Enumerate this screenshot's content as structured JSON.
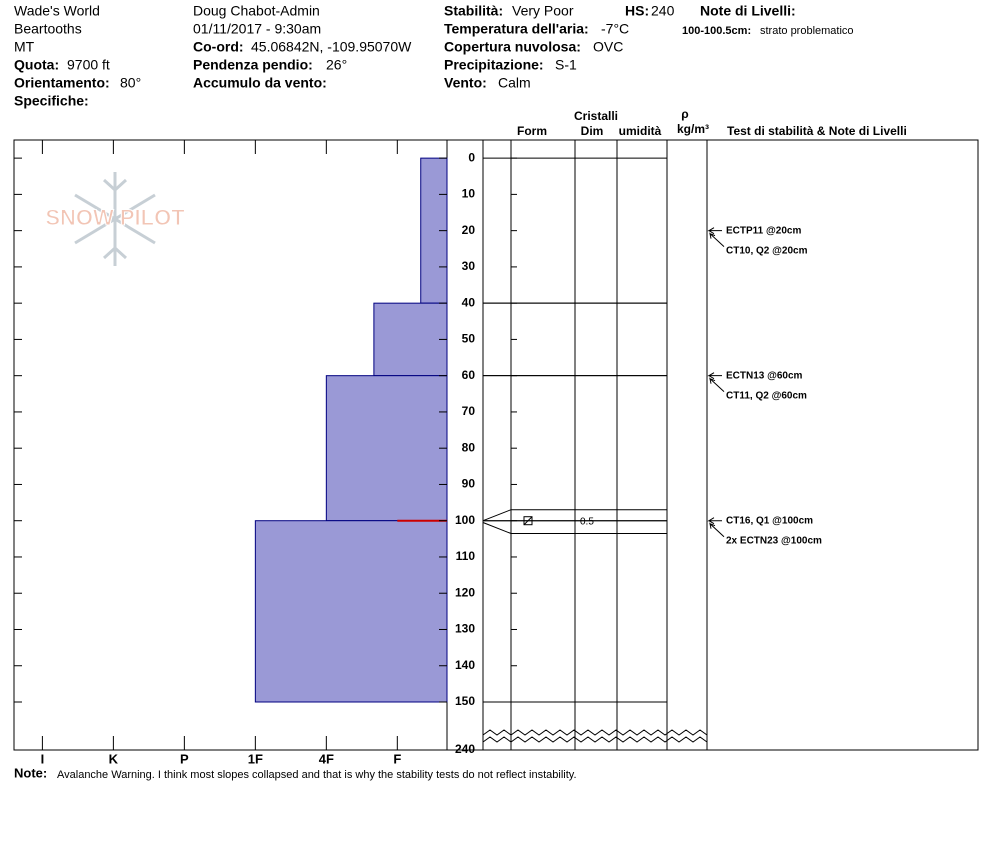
{
  "header": {
    "site": "Wade's World",
    "range": "Beartooths",
    "state": "MT",
    "elevation": {
      "label": "Quota:",
      "value": "9700 ft"
    },
    "aspect": {
      "label": "Orientamento:",
      "value": "80°"
    },
    "specifics": {
      "label": "Specifiche:"
    },
    "observer": "Doug Chabot-Admin",
    "datetime": "01/11/2017 - 9:30am",
    "coords": {
      "label": "Co-ord:",
      "value": "45.06842N, -109.95070W"
    },
    "slope": {
      "label": "Pendenza pendio:",
      "value": "26°"
    },
    "wind_loading": {
      "label": "Accumulo da vento:"
    },
    "stability": {
      "label": "Stabilità:",
      "value": "Very Poor"
    },
    "hs": {
      "label": "HS:"
    },
    "air_temp": {
      "label": "Temperatura dell'aria:",
      "value": "-7°C"
    },
    "sky": {
      "label": "Copertura nuvolosa:",
      "value": "OVC"
    },
    "precip": {
      "label": "Precipitazione:",
      "value": "S-1"
    },
    "wind": {
      "label": "Vento:",
      "value": "Calm"
    },
    "layer_notes": {
      "label": "Note di Livelli:",
      "range": "100-100.5cm:",
      "text": "strato problematico"
    }
  },
  "logo": "SNOW PILOT",
  "chart_data": {
    "type": "snow_profile",
    "xlim": [
      6.4,
      0.3
    ],
    "xticks": [
      {
        "value": 6,
        "label": "I"
      },
      {
        "value": 5,
        "label": "K"
      },
      {
        "value": 4,
        "label": "P"
      },
      {
        "value": 3,
        "label": "1F"
      },
      {
        "value": 2,
        "label": "4F"
      },
      {
        "value": 1,
        "label": "F"
      }
    ],
    "ylim": [
      -5,
      150
    ],
    "yticks": [
      0,
      10,
      20,
      30,
      40,
      50,
      60,
      70,
      80,
      90,
      100,
      110,
      120,
      130,
      140,
      150
    ],
    "hs": 240,
    "layers": {
      "top": [
        0,
        40,
        60,
        100
      ],
      "bottom": [
        40,
        60,
        100,
        150
      ],
      "hardness": [
        0.67,
        1.33,
        2,
        3
      ],
      "color": "#9a99d6"
    },
    "critical_layer": {
      "top": 100,
      "bottom": 100.5,
      "size": 0.5,
      "color": "#cc0000"
    },
    "columns": {
      "crystals": "Cristalli",
      "form": "Form",
      "size": "Dim",
      "moisture": "umidità",
      "density": "ρ",
      "density_unit": "kg/m³",
      "tests": "Test di stabilità & Note di Livelli"
    },
    "tests": {
      "depths": [
        20,
        60,
        100
      ],
      "labels": [
        [
          "ECTP11 @20cm",
          "CT10, Q2 @20cm"
        ],
        [
          "ECTN13 @60cm",
          "CT11, Q2 @60cm"
        ],
        [
          "CT16, Q1 @100cm",
          "2x ECTN23 @100cm"
        ]
      ]
    }
  },
  "note": {
    "label": "Note:",
    "text": "Avalanche Warning. I think most slopes collapsed and that is why the stability tests do not reflect instability."
  }
}
